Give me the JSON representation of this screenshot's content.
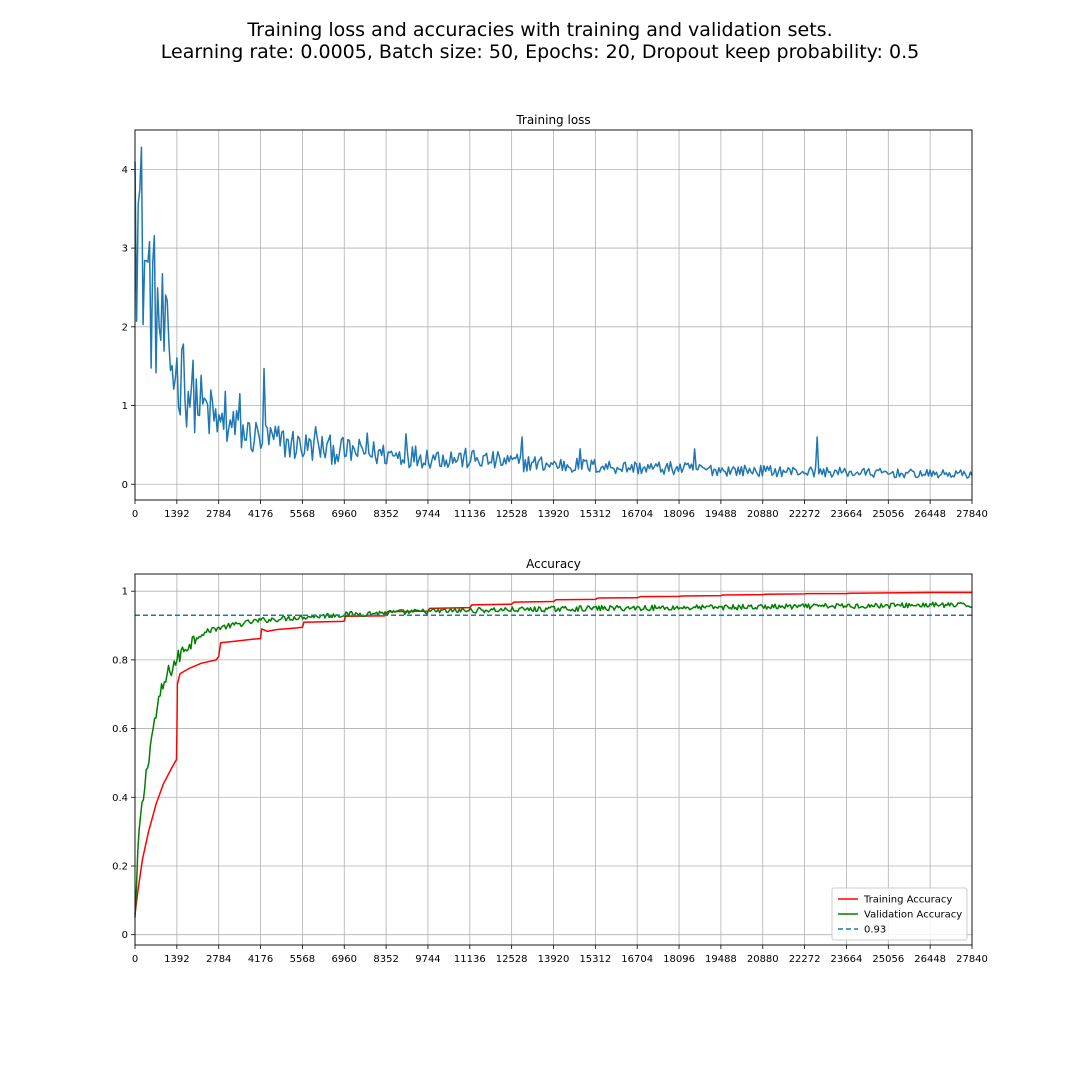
{
  "suptitle": {
    "line1": "Training loss and accuracies with training and validation sets.",
    "line2": "Learning rate: 0.0005, Batch size: 50, Epochs: 20, Dropout keep probability: 0.5"
  },
  "chart_data": [
    {
      "type": "line",
      "title": "Training loss",
      "xlabel": "",
      "ylabel": "",
      "xlim": [
        0,
        27840
      ],
      "ylim": [
        -0.2,
        4.5
      ],
      "grid": true,
      "xticks": [
        0,
        1392,
        2784,
        4176,
        5568,
        6960,
        8352,
        9744,
        11136,
        12528,
        13920,
        15312,
        16704,
        18096,
        19488,
        20880,
        22272,
        23664,
        25056,
        26448,
        27840
      ],
      "yticks": [
        0,
        1,
        2,
        3,
        4
      ],
      "color": "#1f77b4",
      "anchors": [
        [
          0,
          4.1
        ],
        [
          40,
          3.5
        ],
        [
          150,
          3.4
        ],
        [
          300,
          2.9
        ],
        [
          500,
          2.45
        ],
        [
          700,
          2.2
        ],
        [
          900,
          1.95
        ],
        [
          1100,
          1.6
        ],
        [
          1392,
          1.4
        ],
        [
          1800,
          1.2
        ],
        [
          2200,
          1.0
        ],
        [
          2600,
          0.85
        ],
        [
          2784,
          0.75
        ],
        [
          3300,
          0.7
        ],
        [
          3800,
          0.62
        ],
        [
          4176,
          0.58
        ],
        [
          4700,
          0.55
        ],
        [
          5568,
          0.48
        ],
        [
          6960,
          0.42
        ],
        [
          8352,
          0.38
        ],
        [
          9744,
          0.35
        ],
        [
          11136,
          0.32
        ],
        [
          12528,
          0.28
        ],
        [
          13920,
          0.25
        ],
        [
          15312,
          0.23
        ],
        [
          16704,
          0.21
        ],
        [
          18096,
          0.2
        ],
        [
          19488,
          0.18
        ],
        [
          20880,
          0.17
        ],
        [
          22272,
          0.16
        ],
        [
          23664,
          0.15
        ],
        [
          25056,
          0.14
        ],
        [
          26448,
          0.13
        ],
        [
          27840,
          0.13
        ]
      ],
      "spikes": [
        [
          1600,
          1.78
        ],
        [
          3000,
          1.18
        ],
        [
          3500,
          1.15
        ],
        [
          4300,
          1.47
        ],
        [
          6000,
          0.73
        ],
        [
          7700,
          0.65
        ],
        [
          9000,
          0.64
        ],
        [
          12900,
          0.6
        ],
        [
          14800,
          0.45
        ],
        [
          18600,
          0.45
        ],
        [
          22700,
          0.6
        ]
      ],
      "points": 520,
      "noise": 0.42
    },
    {
      "type": "line",
      "title": "Accuracy",
      "xlabel": "",
      "ylabel": "",
      "xlim": [
        0,
        27840
      ],
      "ylim": [
        -0.03,
        1.05
      ],
      "grid": true,
      "legend_position": "bottom-right",
      "xticks": [
        0,
        1392,
        2784,
        4176,
        5568,
        6960,
        8352,
        9744,
        11136,
        12528,
        13920,
        15312,
        16704,
        18096,
        19488,
        20880,
        22272,
        23664,
        25056,
        26448,
        27840
      ],
      "yticks": [
        0.0,
        0.2,
        0.4,
        0.6,
        0.8,
        1.0
      ],
      "series": [
        {
          "name": "Training Accuracy",
          "color": "#ff0000",
          "dashed": false,
          "values": [
            [
              0,
              0.06
            ],
            [
              100,
              0.13
            ],
            [
              250,
              0.22
            ],
            [
              450,
              0.3
            ],
            [
              700,
              0.38
            ],
            [
              950,
              0.44
            ],
            [
              1250,
              0.49
            ],
            [
              1380,
              0.51
            ],
            [
              1395,
              0.6
            ],
            [
              1410,
              0.73
            ],
            [
              1500,
              0.76
            ],
            [
              1800,
              0.775
            ],
            [
              2200,
              0.79
            ],
            [
              2700,
              0.8
            ],
            [
              2784,
              0.81
            ],
            [
              2850,
              0.85
            ],
            [
              3400,
              0.855
            ],
            [
              3900,
              0.86
            ],
            [
              4176,
              0.862
            ],
            [
              4210,
              0.89
            ],
            [
              4400,
              0.883
            ],
            [
              4700,
              0.888
            ],
            [
              5400,
              0.893
            ],
            [
              5568,
              0.895
            ],
            [
              5620,
              0.91
            ],
            [
              5800,
              0.91
            ],
            [
              6900,
              0.912
            ],
            [
              6960,
              0.913
            ],
            [
              7000,
              0.927
            ],
            [
              8300,
              0.928
            ],
            [
              8400,
              0.94
            ],
            [
              9744,
              0.942
            ],
            [
              9800,
              0.95
            ],
            [
              11136,
              0.952
            ],
            [
              11200,
              0.96
            ],
            [
              12528,
              0.962
            ],
            [
              12600,
              0.968
            ],
            [
              13920,
              0.97
            ],
            [
              14000,
              0.975
            ],
            [
              15312,
              0.976
            ],
            [
              15400,
              0.98
            ],
            [
              16704,
              0.981
            ],
            [
              16800,
              0.984
            ],
            [
              18096,
              0.985
            ],
            [
              18200,
              0.986
            ],
            [
              19488,
              0.987
            ],
            [
              19550,
              0.989
            ],
            [
              20880,
              0.99
            ],
            [
              20950,
              0.991
            ],
            [
              22272,
              0.992
            ],
            [
              22350,
              0.993
            ],
            [
              23664,
              0.993
            ],
            [
              23750,
              0.994
            ],
            [
              25056,
              0.995
            ],
            [
              26448,
              0.996
            ],
            [
              27840,
              0.996
            ]
          ]
        },
        {
          "name": "Validation Accuracy",
          "color": "#008000",
          "dashed": false,
          "values": [
            [
              0,
              0.05
            ],
            [
              60,
              0.15
            ],
            [
              130,
              0.3
            ],
            [
              250,
              0.38
            ],
            [
              420,
              0.5
            ],
            [
              600,
              0.6
            ],
            [
              850,
              0.7
            ],
            [
              1100,
              0.76
            ],
            [
              1392,
              0.8
            ],
            [
              1700,
              0.84
            ],
            [
              2100,
              0.87
            ],
            [
              2600,
              0.89
            ],
            [
              3200,
              0.9
            ],
            [
              4176,
              0.915
            ],
            [
              5568,
              0.925
            ],
            [
              6960,
              0.932
            ],
            [
              8352,
              0.937
            ],
            [
              9744,
              0.941
            ],
            [
              11136,
              0.944
            ],
            [
              12528,
              0.946
            ],
            [
              13920,
              0.948
            ],
            [
              15312,
              0.95
            ],
            [
              16704,
              0.951
            ],
            [
              18096,
              0.952
            ],
            [
              19488,
              0.953
            ],
            [
              20880,
              0.954
            ],
            [
              22272,
              0.955
            ],
            [
              23664,
              0.957
            ],
            [
              25056,
              0.958
            ],
            [
              26448,
              0.96
            ],
            [
              27840,
              0.958
            ]
          ],
          "noise": 0.008
        },
        {
          "name": "0.93",
          "color": "#1f77b4",
          "dashed": true,
          "values": [
            [
              0,
              0.93
            ],
            [
              27840,
              0.93
            ]
          ]
        }
      ]
    }
  ]
}
